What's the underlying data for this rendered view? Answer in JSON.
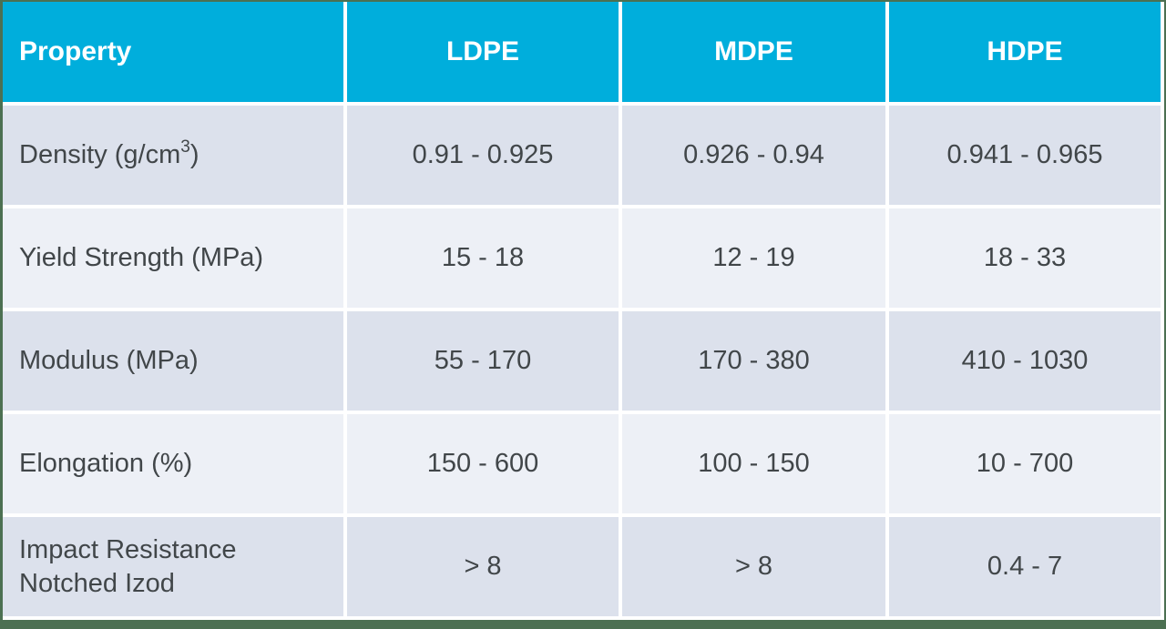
{
  "colors": {
    "header_bg": "#00AEDC",
    "row_dark": "#DCE1EC",
    "row_light": "#EDF0F6",
    "frame": "#4C7052",
    "text": "#414649",
    "header_text": "#FFFFFF",
    "gridline": "#FFFFFF"
  },
  "table": {
    "headers": {
      "property": "Property",
      "ldpe": "LDPE",
      "mdpe": "MDPE",
      "hdpe": "HDPE"
    },
    "rows": {
      "density": {
        "property_base": "Density (g/cm",
        "property_sup": "3",
        "property_close": ")",
        "ldpe": "0.91 - 0.925",
        "mdpe": "0.926 - 0.94",
        "hdpe": "0.941 - 0.965"
      },
      "yield_strength": {
        "property": "Yield Strength (MPa)",
        "ldpe": "15 - 18",
        "mdpe": "12 - 19",
        "hdpe": "18 - 33"
      },
      "modulus": {
        "property": "Modulus (MPa)",
        "ldpe": "55 - 170",
        "mdpe": "170 - 380",
        "hdpe": "410 - 1030"
      },
      "elongation": {
        "property": "Elongation (%)",
        "ldpe": "150 - 600",
        "mdpe": "100 - 150",
        "hdpe": "10 - 700"
      },
      "impact_resistance": {
        "property_line1": "Impact Resistance",
        "property_line2": "Notched Izod",
        "ldpe": "> 8",
        "mdpe": "> 8",
        "hdpe": "0.4 - 7"
      }
    }
  }
}
